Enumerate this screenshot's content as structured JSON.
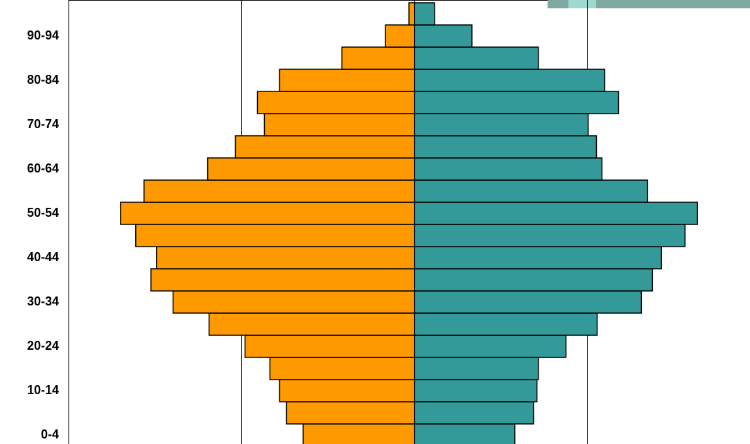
{
  "chart_data": {
    "type": "pyramid",
    "categories": [
      "0-4",
      null,
      "10-14",
      null,
      "20-24",
      null,
      "30-34",
      null,
      "40-44",
      null,
      "50-54",
      null,
      "60-64",
      null,
      "70-74",
      null,
      "80-84",
      null,
      "90-94",
      null
    ],
    "series": [
      {
        "color": "#ff9900",
        "side": "left",
        "values": [
          64.4,
          74,
          78,
          83.6,
          98,
          118.8,
          139.6,
          152.4,
          149.2,
          161.2,
          170,
          156.4,
          119.6,
          103.6,
          86.8,
          90.8,
          78,
          42,
          16.8,
          3.2
        ]
      },
      {
        "color": "#339999",
        "side": "right",
        "values": [
          58,
          68.8,
          70.8,
          71.6,
          87.6,
          105.6,
          131.2,
          137.6,
          142.8,
          156.4,
          163.6,
          134.8,
          108.4,
          105.2,
          100.4,
          118,
          110,
          71.6,
          33.2,
          11.6
        ]
      }
    ],
    "xlim": [
      -200,
      200
    ],
    "xticks": [
      -100,
      0,
      100
    ],
    "grid": true
  }
}
